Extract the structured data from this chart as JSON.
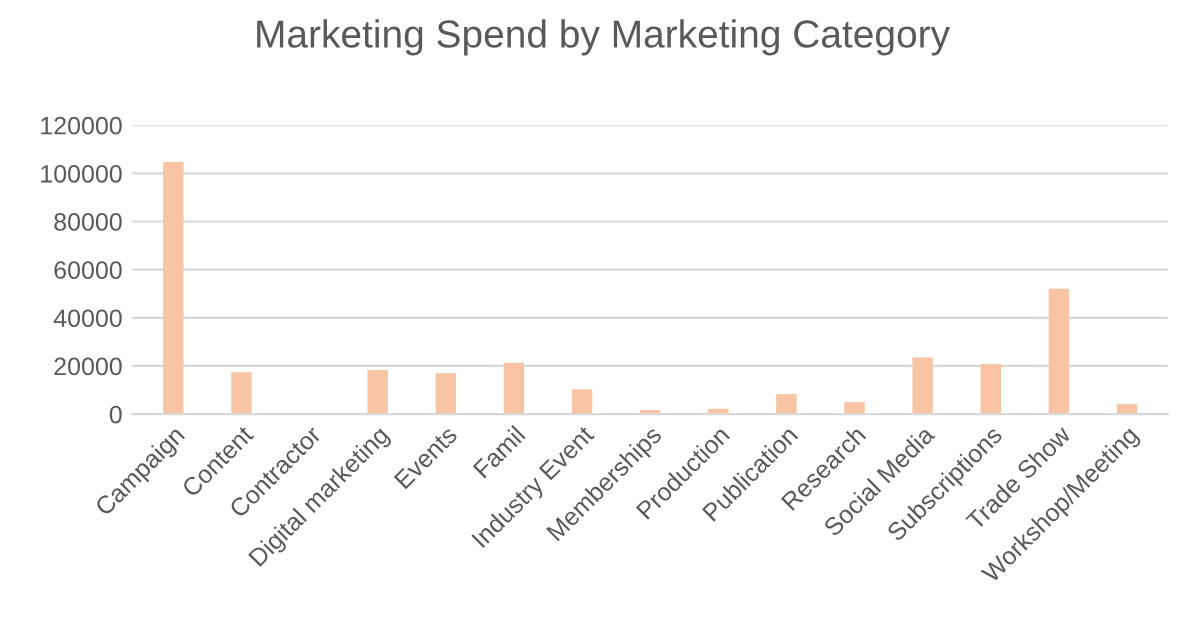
{
  "chart_data": {
    "type": "bar",
    "title": "Marketing Spend by Marketing Category",
    "categories": [
      "Campaign",
      "Content",
      "Contractor",
      "Digital marketing",
      "Events",
      "Famil",
      "Industry Event",
      "Memberships",
      "Production",
      "Publication",
      "Research",
      "Social Media",
      "Subscriptions",
      "Trade Show",
      "Workshop/Meeting"
    ],
    "values": [
      104700,
      17400,
      0,
      18300,
      17000,
      21300,
      10300,
      1700,
      2200,
      8300,
      5000,
      23500,
      20800,
      52100,
      4200
    ],
    "color": "#f8c4a4",
    "ylim": [
      0,
      120000
    ],
    "yticks": [
      0,
      20000,
      40000,
      60000,
      80000,
      100000,
      120000
    ],
    "grid": "y"
  }
}
